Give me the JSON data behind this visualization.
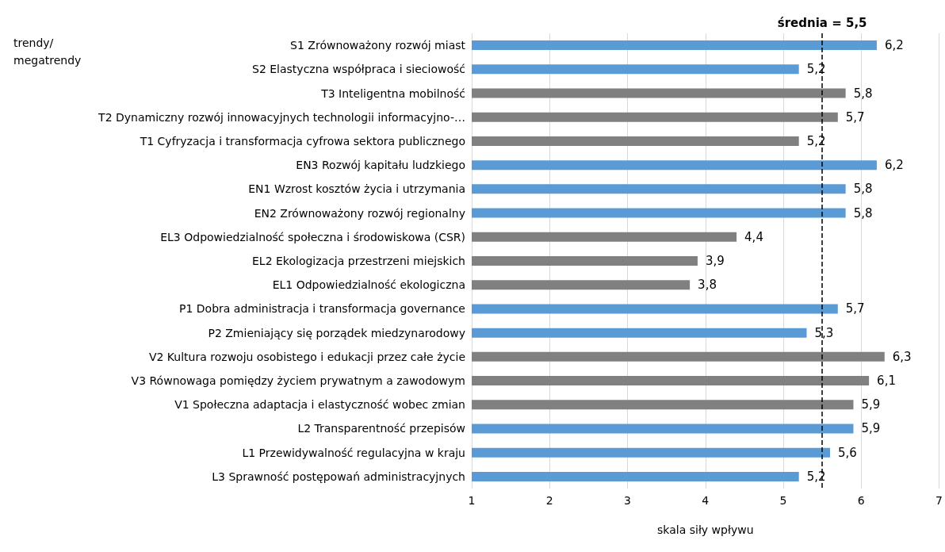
{
  "chart_data": {
    "type": "bar",
    "orientation": "horizontal",
    "ylabel": "trendy/\nmegatrendy",
    "xlabel": "skala siły wpływu",
    "categories": [
      "S1 Zrównoważony rozwój miast",
      "S2 Elastyczna współpraca i sieciowość",
      "T3 Inteligentna mobilność",
      "T2 Dynamiczny rozwój innowacyjnych technologii informacyjno-…",
      "T1 Cyfryzacja i transformacja cyfrowa sektora publicznego",
      "EN3 Rozwój kapitału ludzkiego",
      "EN1 Wzrost kosztów życia i utrzymania",
      "EN2 Zrównoważony rozwój regionalny",
      "EL3 Odpowiedzialność społeczna i środowiskowa (CSR)",
      "EL2 Ekologizacja przestrzeni miejskich",
      "EL1 Odpowiedzialność ekologiczna",
      "P1 Dobra administracja i transformacja governance",
      "P2 Zmieniający się porządek miedzynarodowy",
      "V2 Kultura rozwoju osobistego i edukacji przez całe życie",
      "V3 Równowaga pomiędzy życiem prywatnym a zawodowym",
      "V1 Społeczna adaptacja i elastyczność wobec zmian",
      "L2 Transparentność przepisów",
      "L1 Przewidywalność regulacyjna w kraju",
      "L3 Sprawność postępowań administracyjnych"
    ],
    "values": [
      6.2,
      5.2,
      5.8,
      5.7,
      5.2,
      6.2,
      5.8,
      5.8,
      4.4,
      3.9,
      3.8,
      5.7,
      5.3,
      6.3,
      6.1,
      5.9,
      5.9,
      5.6,
      5.2
    ],
    "value_labels": [
      "6,2",
      "5,2",
      "5,8",
      "5,7",
      "5,2",
      "6,2",
      "5,8",
      "5,8",
      "4,4",
      "3,9",
      "3,8",
      "5,7",
      "5,3",
      "6,3",
      "6,1",
      "5,9",
      "5,9",
      "5,6",
      "5,2"
    ],
    "colors": [
      "#5b9bd5",
      "#5b9bd5",
      "#808080",
      "#808080",
      "#808080",
      "#5b9bd5",
      "#5b9bd5",
      "#5b9bd5",
      "#808080",
      "#808080",
      "#808080",
      "#5b9bd5",
      "#5b9bd5",
      "#808080",
      "#808080",
      "#808080",
      "#5b9bd5",
      "#5b9bd5",
      "#5b9bd5"
    ],
    "xlim": [
      1,
      7
    ],
    "xticks": [
      1,
      2,
      3,
      4,
      5,
      6,
      7
    ],
    "grid": "x",
    "ref_lines": [
      {
        "axis": "x",
        "value": 5.5,
        "label": "średnia = 5,5",
        "color": "#000000",
        "line_style": "dashed"
      }
    ]
  }
}
